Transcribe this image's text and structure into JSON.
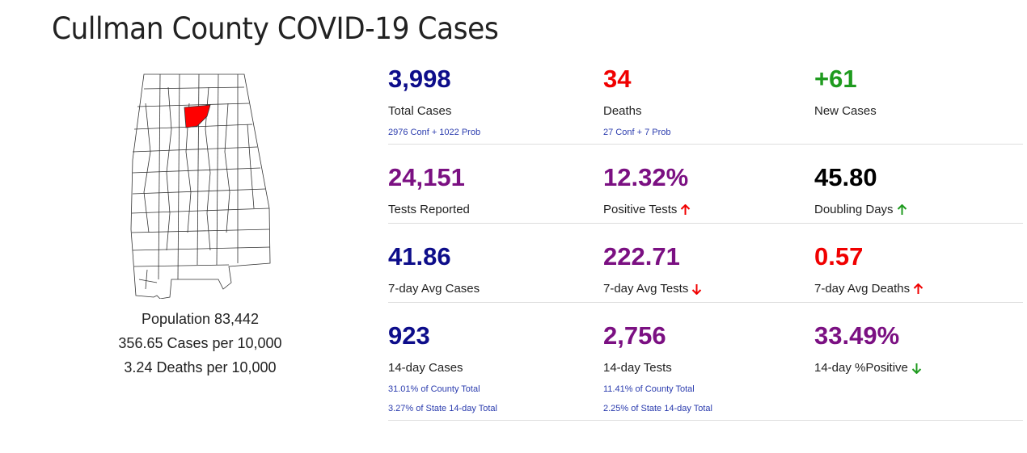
{
  "title": "Cullman County COVID-19 Cases",
  "county": {
    "population": "Population 83,442",
    "cases_per": "356.65 Cases per 10,000",
    "deaths_per": "3.24 Deaths per 10,000"
  },
  "colors": {
    "navy": "#0d0d8a",
    "red": "#f00000",
    "green": "#1f9b1f",
    "purple": "#7b1082",
    "link_blue": "#2b3cae",
    "highlight_county": "#ff0000"
  },
  "stats": {
    "total_cases": {
      "value": "3,998",
      "label": "Total Cases",
      "sub": "2976 Conf + 1022 Prob"
    },
    "deaths": {
      "value": "34",
      "label": "Deaths",
      "sub": "27 Conf + 7 Prob"
    },
    "new_cases": {
      "value": "+61",
      "label": "New Cases"
    },
    "tests_reported": {
      "value": "24,151",
      "label": "Tests Reported"
    },
    "positive_tests": {
      "value": "12.32%",
      "label": "Positive Tests",
      "trend": "up"
    },
    "doubling_days": {
      "value": "45.80",
      "label": "Doubling Days",
      "trend": "up"
    },
    "avg7_cases": {
      "value": "41.86",
      "label": "7-day Avg Cases"
    },
    "avg7_tests": {
      "value": "222.71",
      "label": "7-day Avg Tests",
      "trend": "down"
    },
    "avg7_deaths": {
      "value": "0.57",
      "label": "7-day Avg Deaths",
      "trend": "up"
    },
    "d14_cases": {
      "value": "923",
      "label": "14-day Cases",
      "sub1": "31.01% of County Total",
      "sub2": "3.27% of State 14-day Total"
    },
    "d14_tests": {
      "value": "2,756",
      "label": "14-day Tests",
      "sub1": "11.41% of County Total",
      "sub2": "2.25% of State 14-day Total"
    },
    "d14_positive": {
      "value": "33.49%",
      "label": "14-day %Positive",
      "trend": "down"
    }
  }
}
